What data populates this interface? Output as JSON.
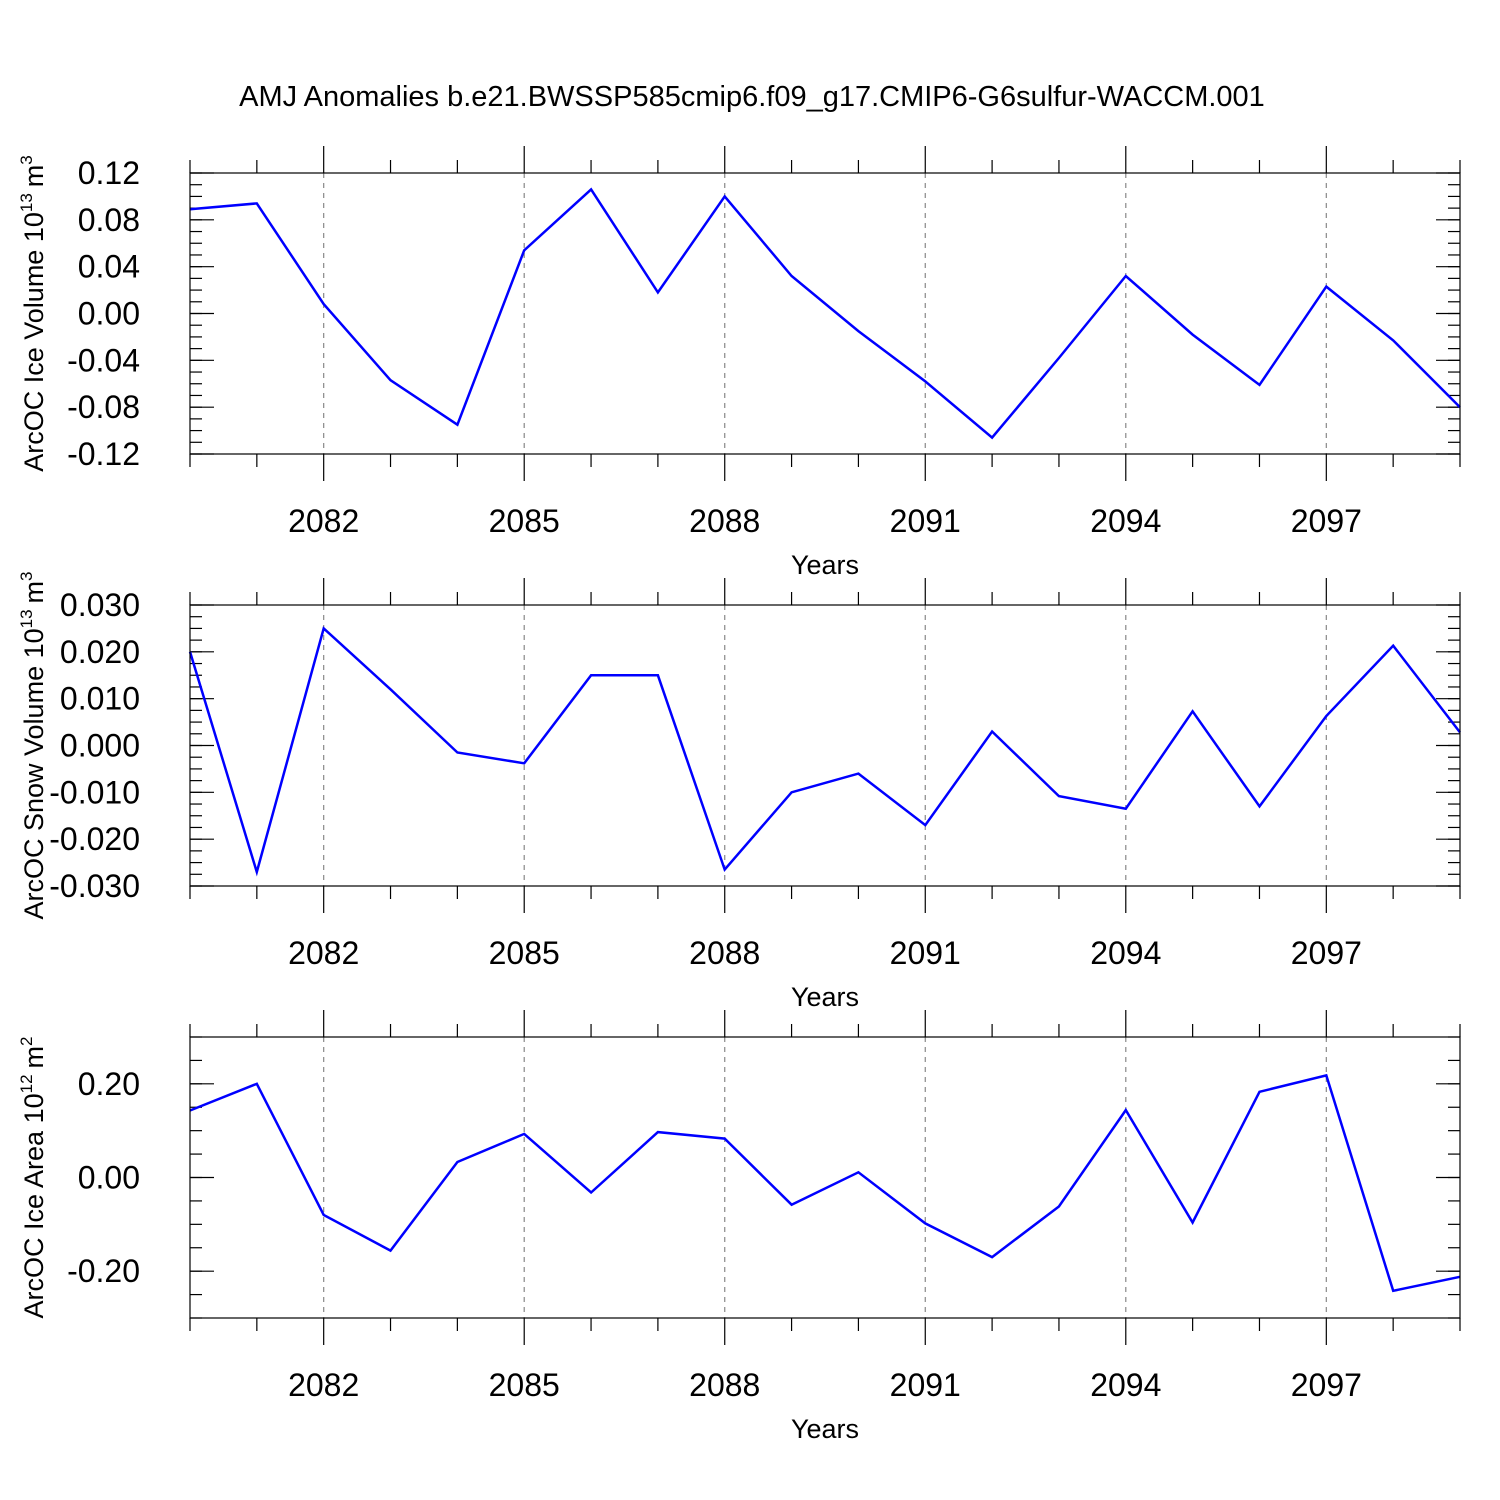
{
  "title": "AMJ Anomalies b.e21.BWSSP585cmip6.f09_g17.CMIP6-G6sulfur-WACCM.001",
  "colors": {
    "line": "#0000ff",
    "frame": "#000000",
    "grid": "#888888"
  },
  "chart_data": [
    {
      "type": "line",
      "xlabel": "Years",
      "ylabel_text": "ArcOC Ice Volume 10",
      "ylabel_exp": "13",
      "ylabel_unit": "m",
      "ylabel_unit_exp": "3",
      "xlim": [
        2080,
        2099
      ],
      "ylim": [
        -0.12,
        0.12
      ],
      "x_ticks": [
        2082,
        2085,
        2088,
        2091,
        2094,
        2097
      ],
      "y_ticks": [
        "0.12",
        "0.08",
        "0.04",
        "0.00",
        "-0.04",
        "-0.08",
        "-0.12"
      ],
      "y_tick_values": [
        0.12,
        0.08,
        0.04,
        0.0,
        -0.04,
        -0.08,
        -0.12
      ],
      "y_minor_step": 0.01,
      "grid": "dashed vertical at major x ticks",
      "x": [
        2080,
        2081,
        2082,
        2083,
        2084,
        2085,
        2086,
        2087,
        2088,
        2089,
        2090,
        2091,
        2092,
        2093,
        2094,
        2095,
        2096,
        2097,
        2098,
        2099
      ],
      "series": [
        {
          "values": [
            0.089,
            0.094,
            0.008,
            -0.057,
            -0.095,
            0.054,
            0.106,
            0.018,
            0.1,
            0.032,
            -0.015,
            -0.058,
            -0.106,
            -0.038,
            0.032,
            -0.018,
            -0.061,
            0.023,
            -0.023,
            -0.08
          ]
        }
      ]
    },
    {
      "type": "line",
      "xlabel": "Years",
      "ylabel_text": "ArcOC Snow Volume 10",
      "ylabel_exp": "13",
      "ylabel_unit": "m",
      "ylabel_unit_exp": "3",
      "xlim": [
        2080,
        2099
      ],
      "ylim": [
        -0.03,
        0.03
      ],
      "x_ticks": [
        2082,
        2085,
        2088,
        2091,
        2094,
        2097
      ],
      "y_ticks": [
        "0.030",
        "0.020",
        "0.010",
        "0.000",
        "-0.010",
        "-0.020",
        "-0.030"
      ],
      "y_tick_values": [
        0.03,
        0.02,
        0.01,
        0.0,
        -0.01,
        -0.02,
        -0.03
      ],
      "y_minor_step": 0.0025,
      "grid": "dashed vertical at major x ticks",
      "x": [
        2080,
        2081,
        2082,
        2083,
        2084,
        2085,
        2086,
        2087,
        2088,
        2089,
        2090,
        2091,
        2092,
        2093,
        2094,
        2095,
        2096,
        2097,
        2098,
        2099
      ],
      "series": [
        {
          "values": [
            0.02,
            -0.027,
            0.025,
            0.012,
            -0.0015,
            -0.0038,
            0.015,
            0.015,
            -0.0265,
            -0.01,
            -0.006,
            -0.017,
            0.003,
            -0.0108,
            -0.0135,
            0.0073,
            -0.013,
            0.0063,
            0.0213,
            0.0028
          ]
        }
      ]
    },
    {
      "type": "line",
      "xlabel": "Years",
      "ylabel_text": "ArcOC Ice Area 10",
      "ylabel_exp": "12",
      "ylabel_unit": "m",
      "ylabel_unit_exp": "2",
      "xlim": [
        2080,
        2099
      ],
      "ylim": [
        -0.3,
        0.3
      ],
      "x_ticks": [
        2082,
        2085,
        2088,
        2091,
        2094,
        2097
      ],
      "y_ticks": [
        "0.20",
        "0.00",
        "-0.20"
      ],
      "y_tick_values": [
        0.2,
        0.0,
        -0.2
      ],
      "y_minor_step": 0.05,
      "grid": "dashed vertical at major x ticks",
      "x": [
        2080,
        2081,
        2082,
        2083,
        2084,
        2085,
        2086,
        2087,
        2088,
        2089,
        2090,
        2091,
        2092,
        2093,
        2094,
        2095,
        2096,
        2097,
        2098,
        2099
      ],
      "series": [
        {
          "values": [
            0.143,
            0.2,
            -0.08,
            -0.156,
            0.033,
            0.093,
            -0.032,
            0.097,
            0.083,
            -0.058,
            0.011,
            -0.098,
            -0.17,
            -0.062,
            0.144,
            -0.096,
            0.183,
            0.218,
            -0.242,
            -0.212
          ]
        }
      ]
    }
  ]
}
